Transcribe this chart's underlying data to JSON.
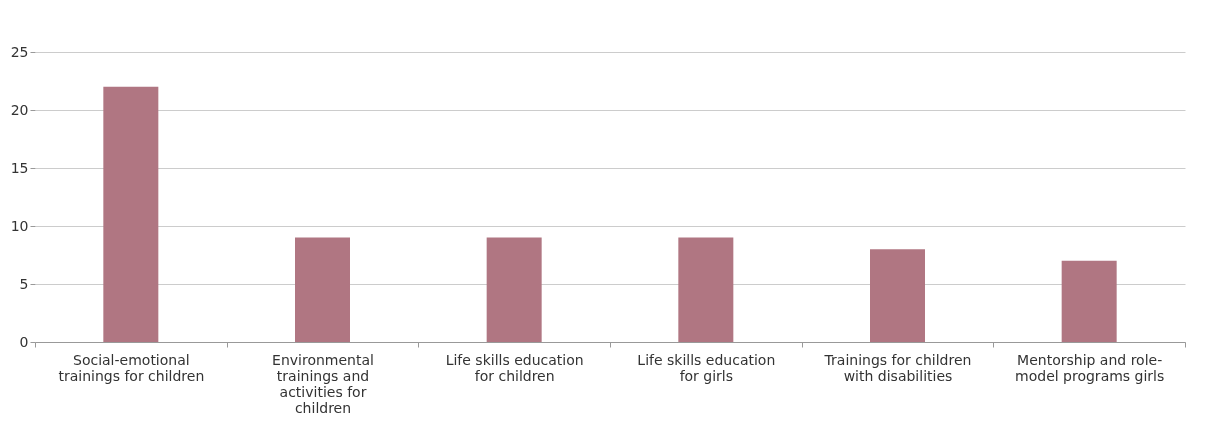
{
  "chart_data": {
    "type": "bar",
    "categories": [
      "Social-emotional trainings for children",
      "Environmental trainings and activities for children",
      "Life skills education for children",
      "Life skills education for girls",
      "Trainings for children with disabilities",
      "Mentorship and role-model programs girls"
    ],
    "values": [
      22,
      9,
      9,
      9,
      8,
      7
    ],
    "color": "#b07682",
    "ylim": [
      0,
      25
    ],
    "yticks": [
      0,
      5,
      10,
      15,
      20,
      25
    ],
    "grid": "y"
  }
}
